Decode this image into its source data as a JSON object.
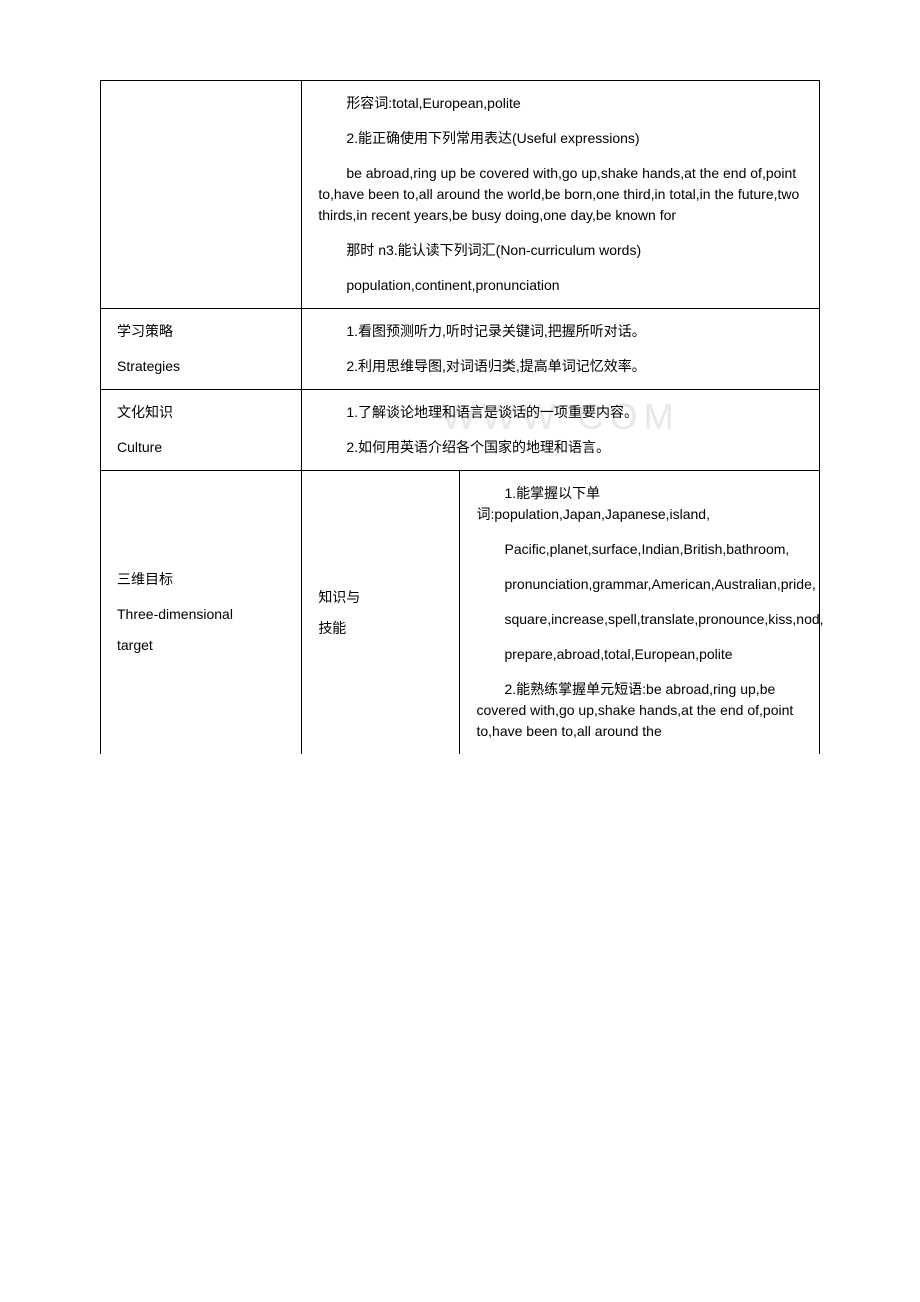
{
  "row1": {
    "content": {
      "p1": "形容词:total,European,polite",
      "p2": "2.能正确使用下列常用表达(Useful expressions)",
      "p3": "be abroad,ring up be covered with,go up,shake hands,at the end of,point to,have been to,all around the world,be born,one third,in total,in the future,two thirds,in recent years,be busy doing,one day,be known for",
      "p4": "那时 n3.能认读下列词汇(Non-curriculum words)",
      "p5": "population,continent,pronunciation"
    }
  },
  "row2": {
    "label_zh": "学习策略",
    "label_en": "Strategies",
    "content": {
      "p1": "1.看图预测听力,听时记录关键词,把握所听对话。",
      "p2": "2.利用思维导图,对词语归类,提高单词记忆效率。"
    }
  },
  "row3": {
    "label_zh": "文化知识",
    "label_en": "Culture",
    "content": {
      "p1": "1.了解谈论地理和语言是谈话的一项重要内容。",
      "p2": "2.如何用英语介绍各个国家的地理和语言。"
    }
  },
  "row4": {
    "label_zh": "三维目标",
    "label_en1": "Three-dimensional",
    "label_en2": "target",
    "sublabel": {
      "l1": "知识与",
      "l2": "技能"
    },
    "content": {
      "p1": "1.能掌握以下单词:population,Japan,Japanese,island,",
      "p2": "Pacific,planet,surface,Indian,British,bathroom,",
      "p3": "pronunciation,grammar,American,Australian,pride,",
      "p4": "square,increase,spell,translate,pronounce,kiss,nod,",
      "p5": "prepare,abroad,total,European,polite",
      "p6": "2.能熟练掌握单元短语:be abroad,ring up,be covered with,go up,shake hands,at the end of,point to,have been to,all around the"
    }
  },
  "watermark": "WWW          COM"
}
